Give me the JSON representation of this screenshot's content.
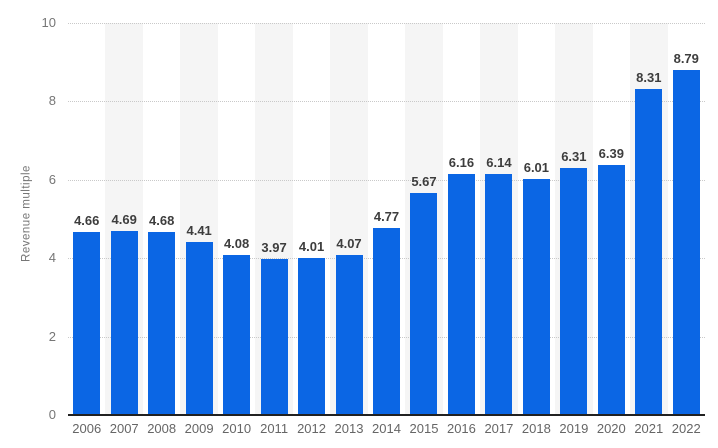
{
  "chart_data": {
    "type": "bar",
    "title": "",
    "xlabel": "",
    "ylabel": "Revenue multiple",
    "categories": [
      "2006",
      "2007",
      "2008",
      "2009",
      "2010",
      "2011",
      "2012",
      "2013",
      "2014",
      "2015",
      "2016",
      "2017",
      "2018",
      "2019",
      "2020",
      "2021",
      "2022"
    ],
    "values": [
      4.66,
      4.69,
      4.68,
      4.41,
      4.08,
      3.97,
      4.01,
      4.07,
      4.77,
      5.67,
      6.16,
      6.14,
      6.01,
      6.31,
      6.39,
      8.31,
      8.79
    ],
    "value_labels": [
      "4.66",
      "4.69",
      "4.68",
      "4.41",
      "4.08",
      "3.97",
      "4.01",
      "4.07",
      "4.77",
      "5.67",
      "6.16",
      "6.14",
      "6.01",
      "6.31",
      "6.39",
      "8.31",
      "8.79"
    ],
    "ylim": [
      0,
      10
    ],
    "yticks": [
      0,
      2,
      4,
      6,
      8,
      10
    ],
    "grid": "horizontal-dotted",
    "legend": "none",
    "plot_band_style": "alternating column stripes behind odd categories"
  },
  "colors": {
    "bar": "#0b66e4",
    "stripe": "#f5f5f5",
    "gridline": "#c9c9c9",
    "axis_line": "#212121",
    "value_label": "#3d3d3d",
    "ytick_label": "#767676",
    "xtick_label": "#666666",
    "axis_title": "#767676",
    "background": "#ffffff"
  }
}
